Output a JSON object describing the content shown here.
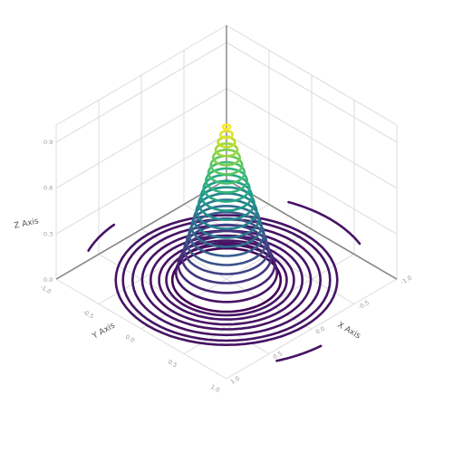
{
  "chart_data": {
    "type": "3d-contour",
    "title": "",
    "axes": {
      "x": {
        "title": "X Axis",
        "ticks": [
          "-1.0",
          "-0.5",
          "0.0",
          "0.5",
          "1.0"
        ],
        "range": [
          -1,
          1
        ]
      },
      "y": {
        "title": "Y Axis",
        "ticks": [
          "-1.0",
          "-0.5",
          "0.0",
          "0.5",
          "1.0"
        ],
        "range": [
          -1,
          1
        ]
      },
      "z": {
        "title": "Z Axis",
        "ticks": [
          "0.0",
          "0.3",
          "0.6",
          "0.9"
        ],
        "range": [
          -0.1,
          1.0
        ]
      }
    },
    "grid": true,
    "colorscale": "viridis",
    "cone_levels": [
      {
        "z": 0.0,
        "r": 0.45
      },
      {
        "z": 0.05,
        "r": 0.42
      },
      {
        "z": 0.1,
        "r": 0.4
      },
      {
        "z": 0.15,
        "r": 0.37
      },
      {
        "z": 0.2,
        "r": 0.35
      },
      {
        "z": 0.25,
        "r": 0.33
      },
      {
        "z": 0.3,
        "r": 0.31
      },
      {
        "z": 0.35,
        "r": 0.29
      },
      {
        "z": 0.4,
        "r": 0.27
      },
      {
        "z": 0.45,
        "r": 0.25
      },
      {
        "z": 0.5,
        "r": 0.23
      },
      {
        "z": 0.55,
        "r": 0.21
      },
      {
        "z": 0.6,
        "r": 0.19
      },
      {
        "z": 0.65,
        "r": 0.17
      },
      {
        "z": 0.7,
        "r": 0.15
      },
      {
        "z": 0.75,
        "r": 0.13
      },
      {
        "z": 0.8,
        "r": 0.11
      },
      {
        "z": 0.85,
        "r": 0.09
      },
      {
        "z": 0.9,
        "r": 0.07
      },
      {
        "z": 0.95,
        "r": 0.05
      },
      {
        "z": 1.0,
        "r": 0.03
      }
    ],
    "floor_rings": [
      {
        "z": 0.0,
        "r": 0.5
      },
      {
        "z": 0.0,
        "r": 0.56
      },
      {
        "z": 0.0,
        "r": 0.63
      },
      {
        "z": 0.0,
        "r": 0.7
      },
      {
        "z": 0.0,
        "r": 0.78
      },
      {
        "z": 0.0,
        "r": 0.86
      },
      {
        "z": 0.0,
        "r": 0.92
      }
    ],
    "edge_arcs": [
      {
        "z": 0.0,
        "r": 1.22,
        "from_deg": 250,
        "to_deg": 290
      },
      {
        "z": 0.0,
        "r": 1.22,
        "from_deg": 155,
        "to_deg": 175
      },
      {
        "z": 0.0,
        "r": 1.22,
        "from_deg": 5,
        "to_deg": 25
      }
    ]
  }
}
